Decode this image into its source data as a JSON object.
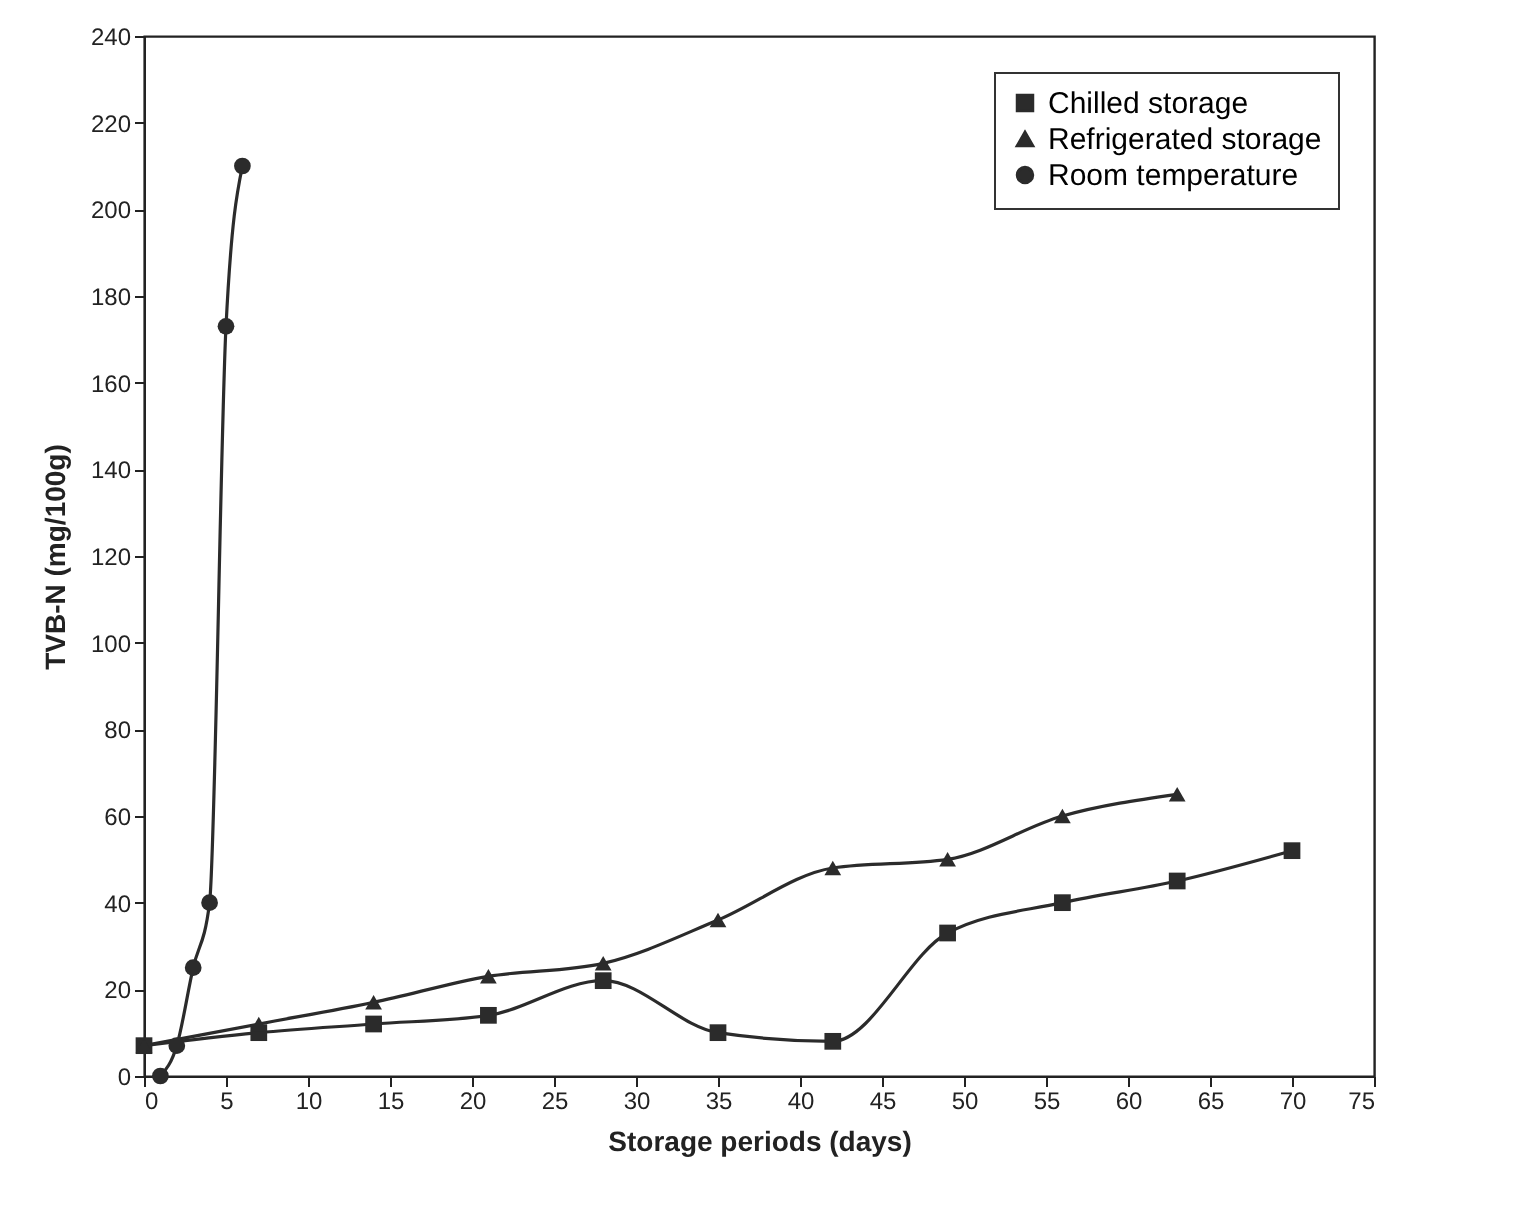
{
  "chart_data": {
    "type": "line",
    "xlabel": "Storage periods (days)",
    "ylabel": "TVB-N (mg/100g)",
    "xlim": [
      0,
      75
    ],
    "xticks": [
      0,
      5,
      10,
      15,
      20,
      25,
      30,
      35,
      40,
      45,
      50,
      55,
      60,
      65,
      70,
      75
    ],
    "ylim": [
      0,
      240
    ],
    "yticks": [
      0,
      20,
      40,
      60,
      80,
      100,
      120,
      140,
      160,
      180,
      200,
      220,
      240
    ],
    "grid": false,
    "legend": "top right",
    "series": [
      {
        "name": "Chilled storage",
        "color": "#2b2b2b",
        "marker": "square",
        "x": [
          0,
          7,
          14,
          21,
          28,
          35,
          42,
          49,
          56,
          63,
          70
        ],
        "values": [
          7,
          10,
          12,
          14,
          22,
          10,
          8,
          33,
          40,
          45,
          52
        ]
      },
      {
        "name": "Refrigerated storage",
        "color": "#2b2b2b",
        "marker": "triangle",
        "x": [
          0,
          7,
          14,
          21,
          28,
          35,
          42,
          49,
          56,
          63
        ],
        "values": [
          7,
          12,
          17,
          23,
          26,
          36,
          48,
          50,
          60,
          65
        ]
      },
      {
        "name": "Room temperature",
        "color": "#2b2b2b",
        "marker": "circle",
        "x": [
          1,
          2,
          3,
          4,
          5,
          6
        ],
        "values": [
          0,
          7,
          25,
          40,
          173,
          210
        ]
      }
    ]
  }
}
